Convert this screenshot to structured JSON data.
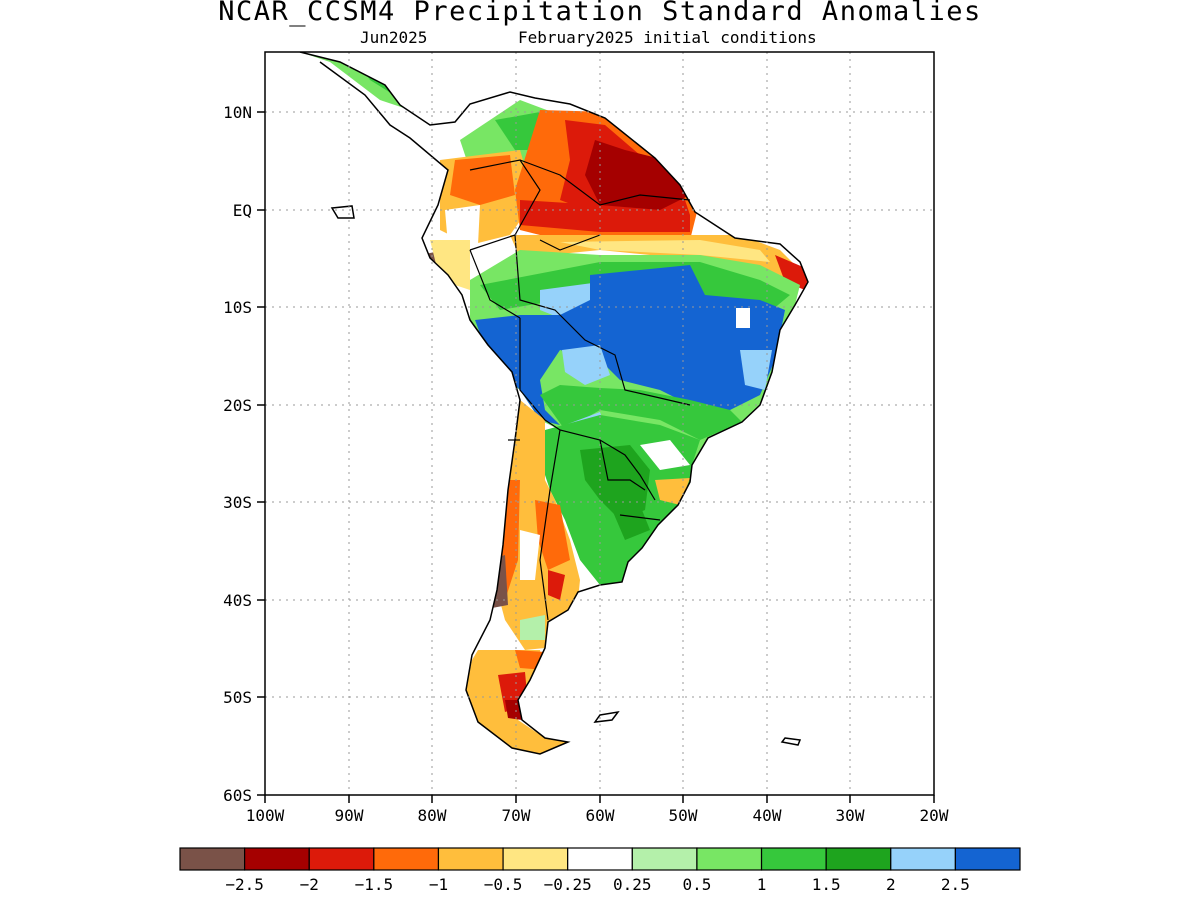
{
  "header": {
    "title": "NCAR_CCSM4 Precipitation Standard Anomalies",
    "subtitle_left": "Jun2025",
    "subtitle_right": "February2025 initial conditions"
  },
  "axes": {
    "lat_labels": [
      "10N",
      "EQ",
      "10S",
      "20S",
      "30S",
      "40S",
      "50S",
      "60S"
    ],
    "lon_labels": [
      "100W",
      "90W",
      "80W",
      "70W",
      "60W",
      "50W",
      "40W",
      "30W",
      "20W"
    ],
    "lat_range": [
      -60,
      15
    ],
    "lon_range": [
      -100,
      -20
    ],
    "grid": "dotted"
  },
  "colorbar": {
    "colors": [
      "#7a5248",
      "#a50000",
      "#dc1a0a",
      "#ff6a0a",
      "#ffbe3c",
      "#ffe682",
      "#ffffff",
      "#b4f0aa",
      "#78e664",
      "#36c83c",
      "#1ea41e",
      "#96d2fa",
      "#1464d2"
    ],
    "labels": [
      "−2.5",
      "−2",
      "−1.5",
      "−1",
      "−0.5",
      "−0.25",
      "0.25",
      "0.5",
      "1",
      "1.5",
      "2",
      "2.5"
    ]
  },
  "regions": [
    {
      "name": "central-brazil",
      "level": 2.5
    },
    {
      "name": "northern-amazon",
      "level": -2
    },
    {
      "name": "guianas",
      "level": -2.5
    },
    {
      "name": "southern-brazil",
      "level": 1.5
    },
    {
      "name": "central-chile",
      "level": -1
    },
    {
      "name": "colombia-andes",
      "level": -1
    }
  ]
}
